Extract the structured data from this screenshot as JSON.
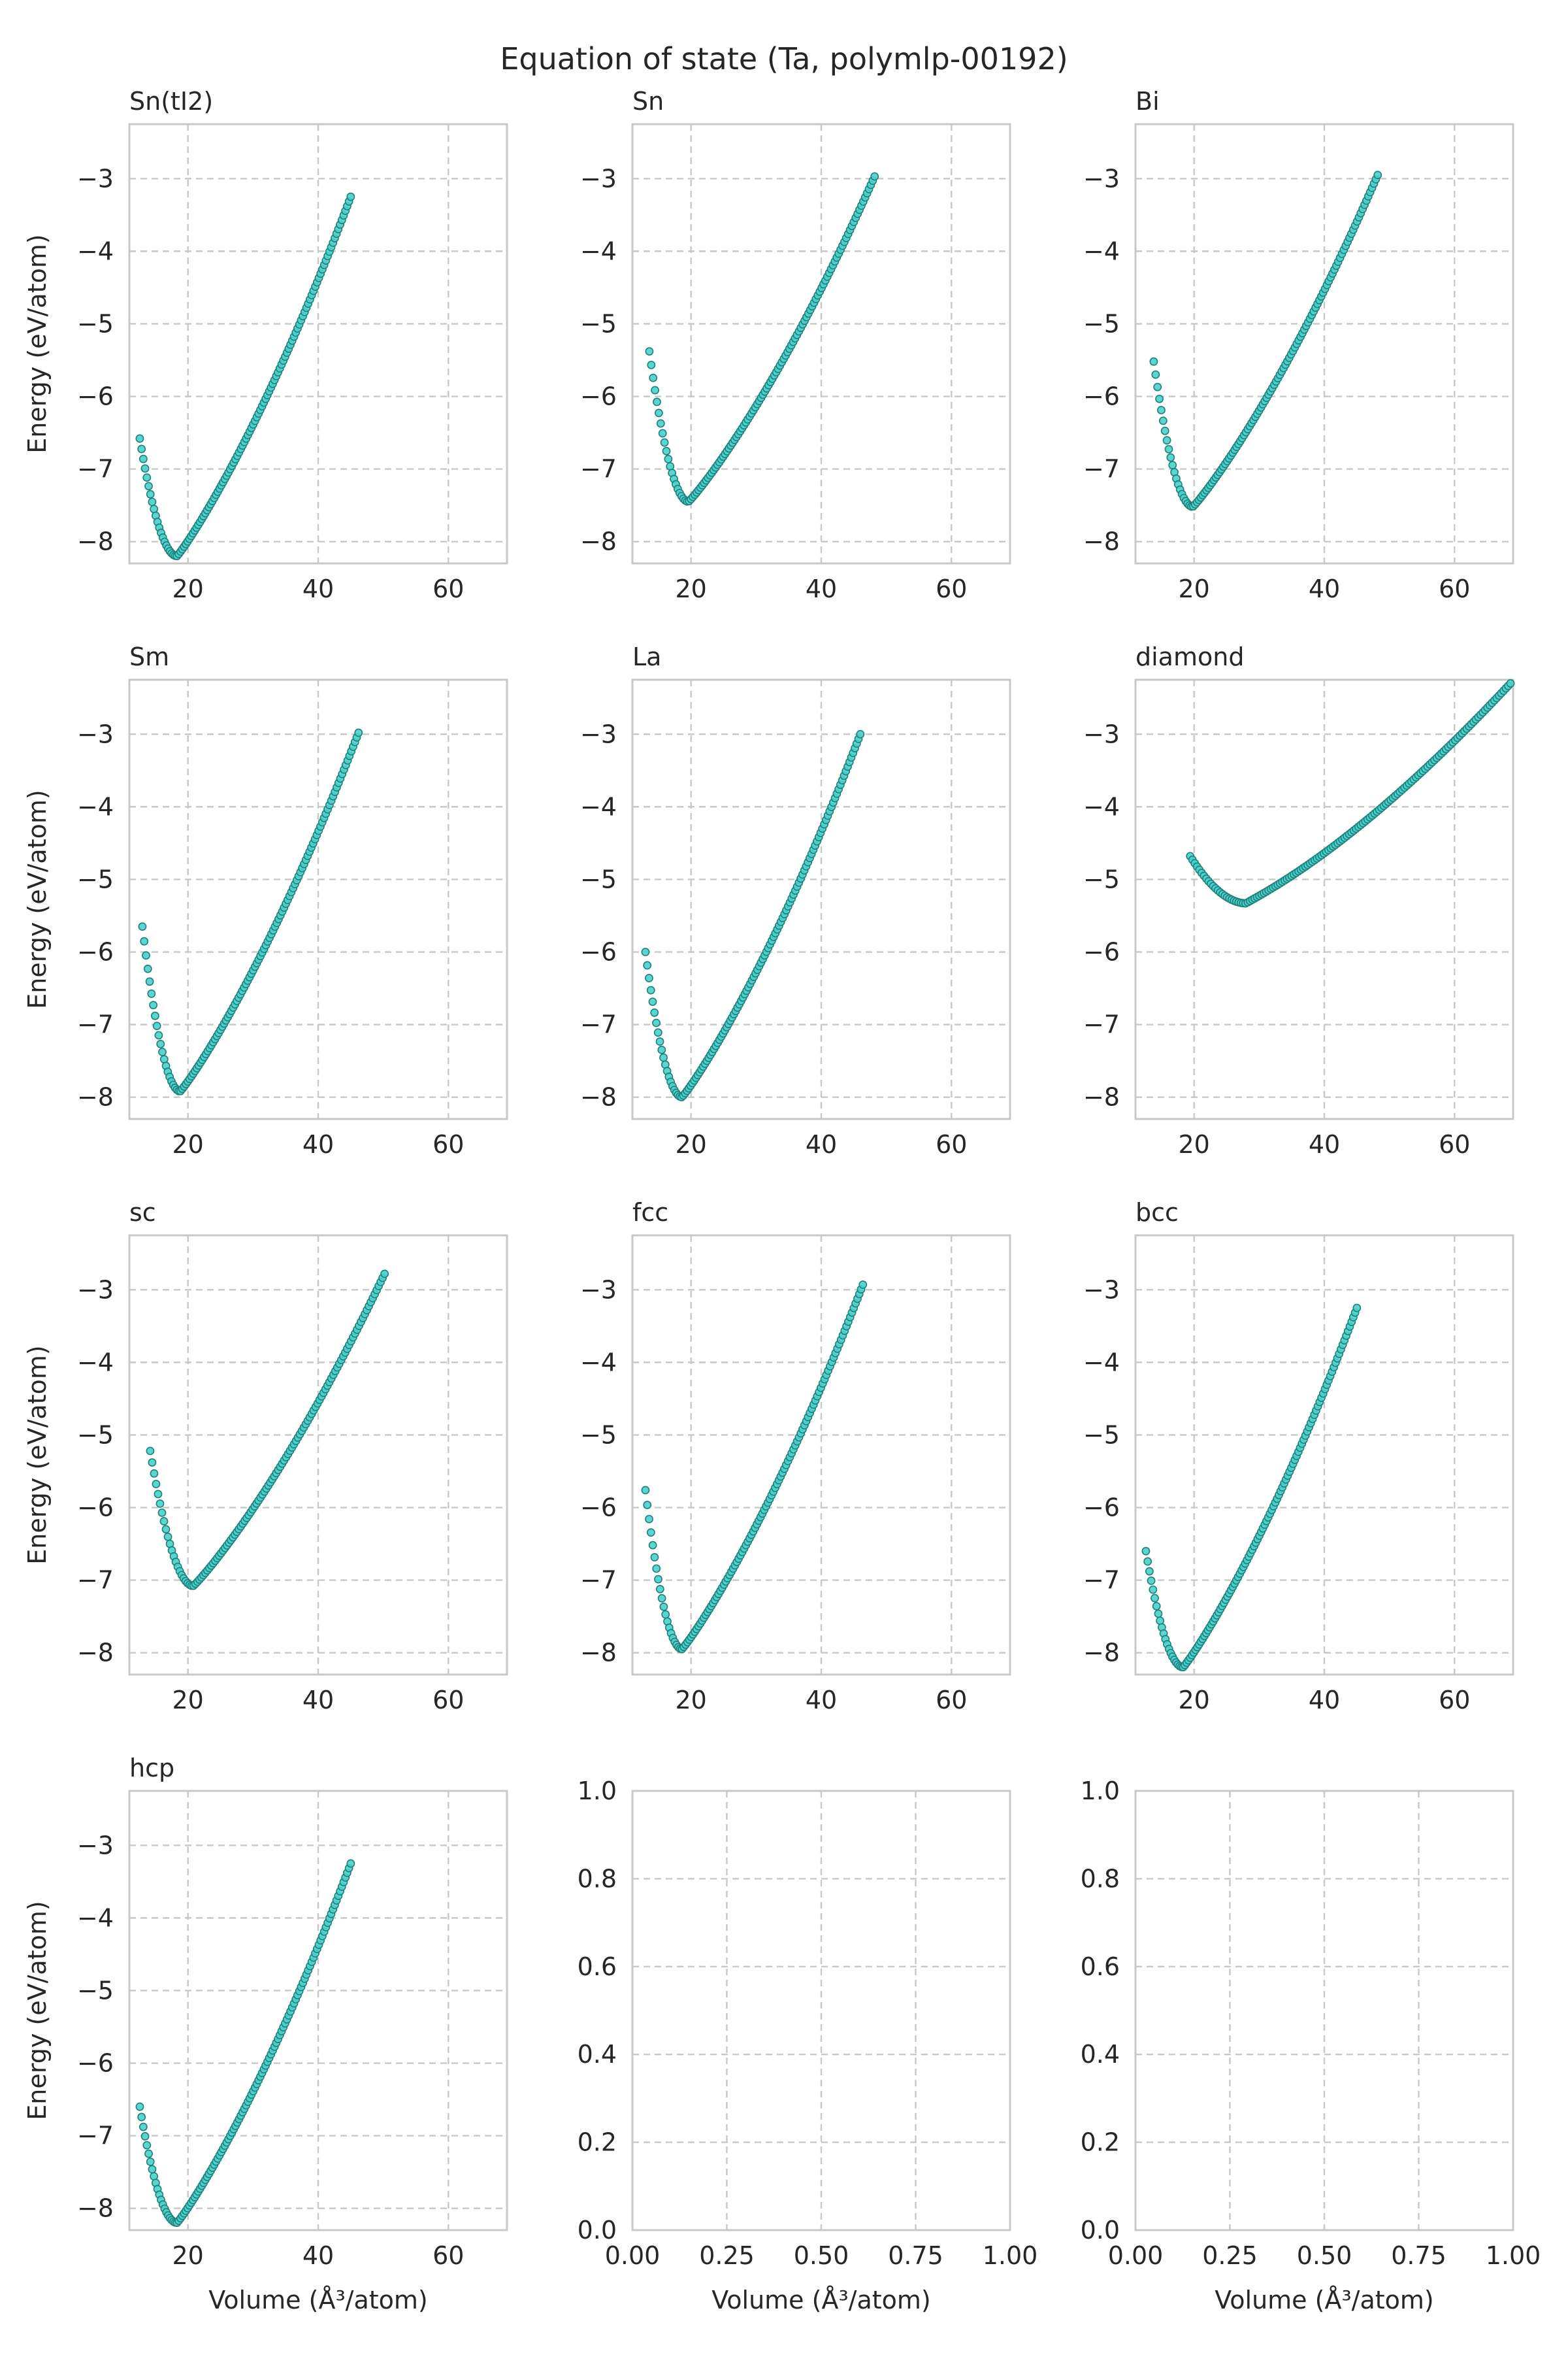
{
  "figure": {
    "title": "Equation of state (Ta, polymlp-00192)",
    "marker_color": "#48d1cc",
    "marker_edge_color": "#1f7f7b",
    "grid_color": "#c8c8c8",
    "spine_color": "#c8c8c8"
  },
  "chart_data": [
    {
      "type": "scatter",
      "title": "Sn(tI2)",
      "xlabel": "",
      "ylabel": "Energy (eV/atom)",
      "xlim": [
        11,
        69
      ],
      "ylim": [
        -8.3,
        -2.25
      ],
      "xticks": [
        20,
        40,
        60
      ],
      "xtick_labels": [
        "20",
        "40",
        "60"
      ],
      "yticks": [
        -8,
        -7,
        -6,
        -5,
        -4,
        -3
      ],
      "ytick_labels": [
        "−8",
        "−7",
        "−6",
        "−5",
        "−4",
        "−3"
      ],
      "grid": true,
      "curve": {
        "v_min": 12.6,
        "v_max": 45.0,
        "v0": 18.3,
        "e0": -8.2,
        "e_left": -6.58,
        "e_right": -3.25,
        "n_points": 120
      }
    },
    {
      "type": "scatter",
      "title": "Sn",
      "xlabel": "",
      "ylabel": "",
      "xlim": [
        11,
        69
      ],
      "ylim": [
        -8.3,
        -2.25
      ],
      "xticks": [
        20,
        40,
        60
      ],
      "xtick_labels": [
        "20",
        "40",
        "60"
      ],
      "yticks": [
        -8,
        -7,
        -6,
        -5,
        -4,
        -3
      ],
      "ytick_labels": [
        "−8",
        "−7",
        "−6",
        "−5",
        "−4",
        "−3"
      ],
      "grid": true,
      "curve": {
        "v_min": 13.6,
        "v_max": 48.2,
        "v0": 19.6,
        "e0": -7.45,
        "e_left": -5.38,
        "e_right": -2.97,
        "n_points": 120
      }
    },
    {
      "type": "scatter",
      "title": "Bi",
      "xlabel": "",
      "ylabel": "",
      "xlim": [
        11,
        69
      ],
      "ylim": [
        -8.3,
        -2.25
      ],
      "xticks": [
        20,
        40,
        60
      ],
      "xtick_labels": [
        "20",
        "40",
        "60"
      ],
      "yticks": [
        -8,
        -7,
        -6,
        -5,
        -4,
        -3
      ],
      "ytick_labels": [
        "−8",
        "−7",
        "−6",
        "−5",
        "−4",
        "−3"
      ],
      "grid": true,
      "curve": {
        "v_min": 13.8,
        "v_max": 48.2,
        "v0": 19.8,
        "e0": -7.52,
        "e_left": -5.52,
        "e_right": -2.95,
        "n_points": 120
      }
    },
    {
      "type": "scatter",
      "title": "Sm",
      "xlabel": "",
      "ylabel": "Energy (eV/atom)",
      "xlim": [
        11,
        69
      ],
      "ylim": [
        -8.3,
        -2.25
      ],
      "xticks": [
        20,
        40,
        60
      ],
      "xtick_labels": [
        "20",
        "40",
        "60"
      ],
      "yticks": [
        -8,
        -7,
        -6,
        -5,
        -4,
        -3
      ],
      "ytick_labels": [
        "−8",
        "−7",
        "−6",
        "−5",
        "−4",
        "−3"
      ],
      "grid": true,
      "curve": {
        "v_min": 13.0,
        "v_max": 46.2,
        "v0": 18.8,
        "e0": -7.92,
        "e_left": -5.65,
        "e_right": -2.98,
        "n_points": 120
      }
    },
    {
      "type": "scatter",
      "title": "La",
      "xlabel": "",
      "ylabel": "",
      "xlim": [
        11,
        69
      ],
      "ylim": [
        -8.3,
        -2.25
      ],
      "xticks": [
        20,
        40,
        60
      ],
      "xtick_labels": [
        "20",
        "40",
        "60"
      ],
      "yticks": [
        -8,
        -7,
        -6,
        -5,
        -4,
        -3
      ],
      "ytick_labels": [
        "−8",
        "−7",
        "−6",
        "−5",
        "−4",
        "−3"
      ],
      "grid": true,
      "curve": {
        "v_min": 13.0,
        "v_max": 46.0,
        "v0": 18.6,
        "e0": -8.0,
        "e_left": -6.0,
        "e_right": -3.0,
        "n_points": 120
      }
    },
    {
      "type": "scatter",
      "title": "diamond",
      "xlabel": "",
      "ylabel": "",
      "xlim": [
        11,
        69
      ],
      "ylim": [
        -8.3,
        -2.25
      ],
      "xticks": [
        20,
        40,
        60
      ],
      "xtick_labels": [
        "20",
        "40",
        "60"
      ],
      "yticks": [
        -8,
        -7,
        -6,
        -5,
        -4,
        -3
      ],
      "ytick_labels": [
        "−8",
        "−7",
        "−6",
        "−5",
        "−4",
        "−3"
      ],
      "grid": true,
      "curve": {
        "v_min": 19.4,
        "v_max": 68.6,
        "v0": 28.0,
        "e0": -5.33,
        "e_left": -4.68,
        "e_right": -2.3,
        "n_points": 140,
        "shape": "diamond"
      }
    },
    {
      "type": "scatter",
      "title": "sc",
      "xlabel": "",
      "ylabel": "Energy (eV/atom)",
      "xlim": [
        11,
        69
      ],
      "ylim": [
        -8.3,
        -2.25
      ],
      "xticks": [
        20,
        40,
        60
      ],
      "xtick_labels": [
        "20",
        "40",
        "60"
      ],
      "yticks": [
        -8,
        -7,
        -6,
        -5,
        -4,
        -3
      ],
      "ytick_labels": [
        "−8",
        "−7",
        "−6",
        "−5",
        "−4",
        "−3"
      ],
      "grid": true,
      "curve": {
        "v_min": 14.2,
        "v_max": 50.2,
        "v0": 20.8,
        "e0": -7.08,
        "e_left": -5.22,
        "e_right": -2.78,
        "n_points": 120
      }
    },
    {
      "type": "scatter",
      "title": "fcc",
      "xlabel": "",
      "ylabel": "",
      "xlim": [
        11,
        69
      ],
      "ylim": [
        -8.3,
        -2.25
      ],
      "xticks": [
        20,
        40,
        60
      ],
      "xtick_labels": [
        "20",
        "40",
        "60"
      ],
      "yticks": [
        -8,
        -7,
        -6,
        -5,
        -4,
        -3
      ],
      "ytick_labels": [
        "−8",
        "−7",
        "−6",
        "−5",
        "−4",
        "−3"
      ],
      "grid": true,
      "curve": {
        "v_min": 13.0,
        "v_max": 46.4,
        "v0": 18.6,
        "e0": -7.95,
        "e_left": -5.76,
        "e_right": -2.93,
        "n_points": 120
      }
    },
    {
      "type": "scatter",
      "title": "bcc",
      "xlabel": "",
      "ylabel": "",
      "xlim": [
        11,
        69
      ],
      "ylim": [
        -8.3,
        -2.25
      ],
      "xticks": [
        20,
        40,
        60
      ],
      "xtick_labels": [
        "20",
        "40",
        "60"
      ],
      "yticks": [
        -8,
        -7,
        -6,
        -5,
        -4,
        -3
      ],
      "ytick_labels": [
        "−8",
        "−7",
        "−6",
        "−5",
        "−4",
        "−3"
      ],
      "grid": true,
      "curve": {
        "v_min": 12.6,
        "v_max": 45.0,
        "v0": 18.3,
        "e0": -8.2,
        "e_left": -6.6,
        "e_right": -3.25,
        "n_points": 120
      }
    },
    {
      "type": "scatter",
      "title": "hcp",
      "xlabel": "Volume (Å³/atom)",
      "ylabel": "Energy (eV/atom)",
      "xlim": [
        11,
        69
      ],
      "ylim": [
        -8.3,
        -2.25
      ],
      "xticks": [
        20,
        40,
        60
      ],
      "xtick_labels": [
        "20",
        "40",
        "60"
      ],
      "yticks": [
        -8,
        -7,
        -6,
        -5,
        -4,
        -3
      ],
      "ytick_labels": [
        "−8",
        "−7",
        "−6",
        "−5",
        "−4",
        "−3"
      ],
      "grid": true,
      "curve": {
        "v_min": 12.6,
        "v_max": 45.0,
        "v0": 18.3,
        "e0": -8.2,
        "e_left": -6.6,
        "e_right": -3.25,
        "n_points": 120
      }
    },
    {
      "type": "scatter",
      "title": "",
      "xlabel": "Volume (Å³/atom)",
      "ylabel": "",
      "xlim": [
        0,
        1
      ],
      "ylim": [
        0,
        1
      ],
      "xticks": [
        0,
        0.25,
        0.5,
        0.75,
        1.0
      ],
      "xtick_labels": [
        "0.00",
        "0.25",
        "0.50",
        "0.75",
        "1.00"
      ],
      "yticks": [
        0,
        0.2,
        0.4,
        0.6,
        0.8,
        1.0
      ],
      "ytick_labels": [
        "0.0",
        "0.2",
        "0.4",
        "0.6",
        "0.8",
        "1.0"
      ],
      "grid": true,
      "curve": null
    },
    {
      "type": "scatter",
      "title": "",
      "xlabel": "Volume (Å³/atom)",
      "ylabel": "",
      "xlim": [
        0,
        1
      ],
      "ylim": [
        0,
        1
      ],
      "xticks": [
        0,
        0.25,
        0.5,
        0.75,
        1.0
      ],
      "xtick_labels": [
        "0.00",
        "0.25",
        "0.50",
        "0.75",
        "1.00"
      ],
      "yticks": [
        0,
        0.2,
        0.4,
        0.6,
        0.8,
        1.0
      ],
      "ytick_labels": [
        "0.0",
        "0.2",
        "0.4",
        "0.6",
        "0.8",
        "1.0"
      ],
      "grid": true,
      "curve": null
    }
  ]
}
